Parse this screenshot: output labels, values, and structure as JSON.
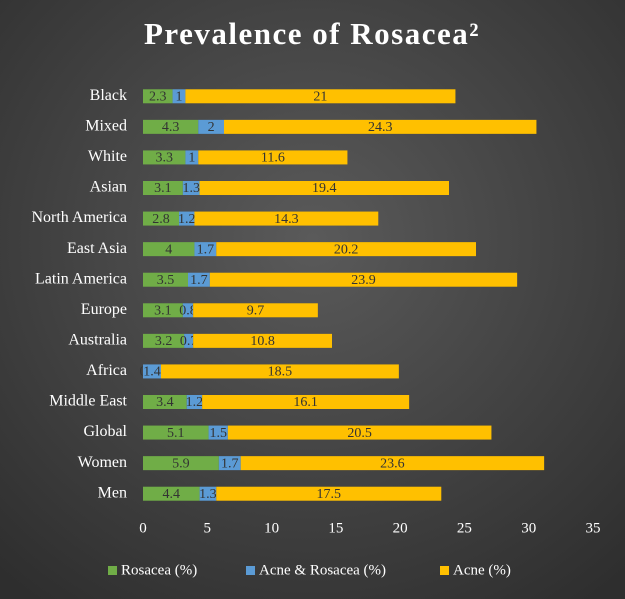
{
  "chart_data": {
    "type": "stacked-bar-horizontal",
    "title": "Prevalence of Rosacea²",
    "categories": [
      "Black",
      "Mixed",
      "White",
      "Asian",
      "North America",
      "East Asia",
      "Latin America",
      "Europe",
      "Australia",
      "Africa",
      "Middle East",
      "Global",
      "Women",
      "Men"
    ],
    "series": [
      {
        "name": "Rosacea (%)",
        "color": "#70ad47",
        "values": [
          2.3,
          4.3,
          3.3,
          3.1,
          2.8,
          4,
          3.5,
          3.1,
          3.2,
          0,
          3.4,
          5.1,
          5.9,
          4.4
        ]
      },
      {
        "name": "Acne & Rosacea (%)",
        "color": "#5b9bd5",
        "values": [
          1,
          2,
          1,
          1.3,
          1.2,
          1.7,
          1.7,
          0.8,
          0.7,
          1.4,
          1.2,
          1.5,
          1.7,
          1.3
        ]
      },
      {
        "name": "Acne (%)",
        "color": "#ffc000",
        "values": [
          21,
          24.3,
          11.6,
          19.4,
          14.3,
          20.2,
          23.9,
          9.7,
          10.8,
          18.5,
          16.1,
          20.5,
          23.6,
          17.5
        ]
      }
    ],
    "xlim": [
      0,
      35
    ],
    "xticks": [
      0,
      5,
      10,
      15,
      20,
      25,
      30,
      35
    ],
    "legend": "bottom"
  }
}
